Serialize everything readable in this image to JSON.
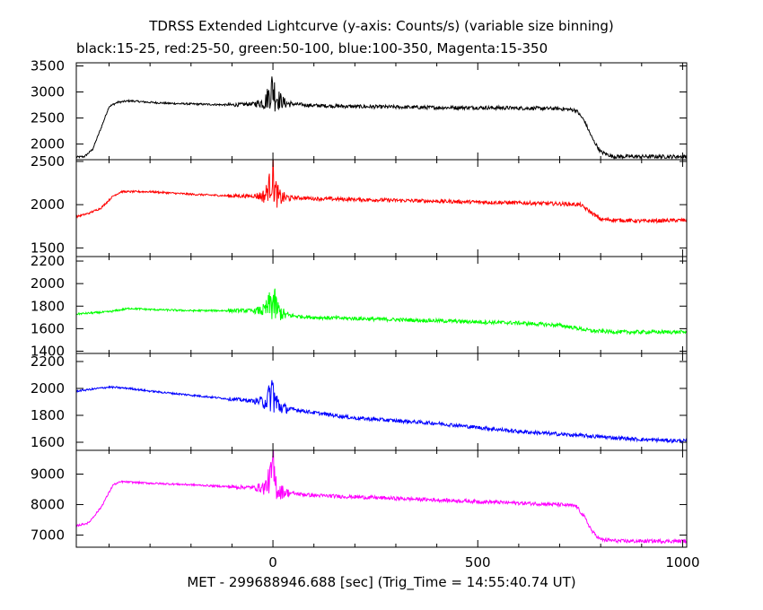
{
  "chart_data": {
    "type": "line",
    "title": "TDRSS Extended Lightcurve (y-axis: Counts/s) (variable size binning)",
    "subtitle": "black:15-25, red:25-50, green:50-100, blue:100-350, Magenta:15-350",
    "xlabel": "MET - 299688946.688 [sec] (Trig_Time = 14:55:40.74 UT)",
    "xlim": [
      -480,
      1010
    ],
    "xticks": [
      0,
      500,
      1000
    ],
    "xtick_labels": [
      "0",
      "500",
      "1000"
    ],
    "grid": false,
    "panels": [
      {
        "name": "black:15-25",
        "color": "#000000",
        "ylim": [
          1700,
          3560
        ],
        "yticks": [
          2000,
          2500,
          3000,
          3500
        ],
        "ytick_labels": [
          "2000",
          "2500",
          "3000",
          "3500"
        ],
        "x": [
          -480,
          -460,
          -440,
          -420,
          -400,
          -380,
          -350,
          -300,
          -250,
          -200,
          -150,
          -100,
          -50,
          -20,
          -5,
          0,
          5,
          15,
          30,
          60,
          100,
          200,
          300,
          400,
          500,
          600,
          700,
          740,
          760,
          780,
          800,
          830,
          900,
          1000
        ],
        "y": [
          1750,
          1760,
          1900,
          2300,
          2720,
          2800,
          2830,
          2800,
          2780,
          2770,
          2760,
          2750,
          2770,
          2800,
          3000,
          3100,
          2950,
          2850,
          2780,
          2760,
          2740,
          2720,
          2710,
          2700,
          2700,
          2690,
          2680,
          2650,
          2450,
          2100,
          1850,
          1760,
          1760,
          1760
        ]
      },
      {
        "name": "red:25-50",
        "color": "#ff0000",
        "ylim": [
          1400,
          2520
        ],
        "yticks": [
          1500,
          2000,
          2500
        ],
        "ytick_labels": [
          "1500",
          "2000",
          "2500"
        ],
        "x": [
          -480,
          -450,
          -420,
          -390,
          -370,
          -300,
          -200,
          -100,
          -20,
          -5,
          0,
          5,
          15,
          30,
          60,
          100,
          200,
          300,
          400,
          500,
          600,
          700,
          750,
          780,
          800,
          900,
          1000
        ],
        "y": [
          1860,
          1900,
          1960,
          2100,
          2150,
          2150,
          2120,
          2100,
          2100,
          2250,
          2350,
          2150,
          2080,
          2080,
          2080,
          2070,
          2060,
          2050,
          2040,
          2030,
          2020,
          2010,
          2000,
          1900,
          1830,
          1810,
          1820
        ]
      },
      {
        "name": "green:50-100",
        "color": "#00ff00",
        "ylim": [
          1380,
          2240
        ],
        "yticks": [
          1400,
          1600,
          1800,
          2000,
          2200
        ],
        "ytick_labels": [
          "1400",
          "1600",
          "1800",
          "2000",
          "2200"
        ],
        "x": [
          -480,
          -400,
          -350,
          -300,
          -200,
          -100,
          -20,
          -5,
          0,
          5,
          15,
          30,
          60,
          100,
          200,
          300,
          400,
          500,
          600,
          700,
          780,
          850,
          1000
        ],
        "y": [
          1730,
          1750,
          1780,
          1770,
          1760,
          1760,
          1760,
          1820,
          1850,
          1800,
          1750,
          1720,
          1710,
          1700,
          1690,
          1680,
          1670,
          1660,
          1650,
          1630,
          1580,
          1570,
          1570
        ]
      },
      {
        "name": "blue:100-350",
        "color": "#0000ff",
        "ylim": [
          1540,
          2260
        ],
        "yticks": [
          1600,
          1800,
          2000,
          2200
        ],
        "ytick_labels": [
          "1600",
          "1800",
          "2000",
          "2200"
        ],
        "x": [
          -480,
          -400,
          -350,
          -300,
          -200,
          -100,
          -20,
          -5,
          0,
          5,
          15,
          30,
          60,
          100,
          200,
          300,
          400,
          500,
          600,
          700,
          800,
          900,
          1000
        ],
        "y": [
          1980,
          2010,
          2000,
          1980,
          1950,
          1920,
          1900,
          1950,
          2000,
          1900,
          1870,
          1850,
          1840,
          1820,
          1780,
          1760,
          1740,
          1710,
          1680,
          1660,
          1640,
          1620,
          1610
        ]
      },
      {
        "name": "Magenta:15-350",
        "color": "#ff00ff",
        "ylim": [
          6600,
          9780
        ],
        "yticks": [
          7000,
          8000,
          9000
        ],
        "ytick_labels": [
          "7000",
          "8000",
          "9000"
        ],
        "x": [
          -480,
          -450,
          -420,
          -390,
          -370,
          -300,
          -200,
          -100,
          -20,
          -5,
          0,
          5,
          15,
          30,
          60,
          100,
          200,
          300,
          400,
          500,
          600,
          700,
          740,
          760,
          780,
          800,
          850,
          900,
          1000
        ],
        "y": [
          7300,
          7400,
          7900,
          8650,
          8750,
          8700,
          8650,
          8580,
          8550,
          8900,
          9300,
          8700,
          8450,
          8400,
          8350,
          8300,
          8250,
          8200,
          8150,
          8100,
          8050,
          8000,
          7950,
          7600,
          7100,
          6850,
          6800,
          6800,
          6800
        ]
      }
    ]
  }
}
